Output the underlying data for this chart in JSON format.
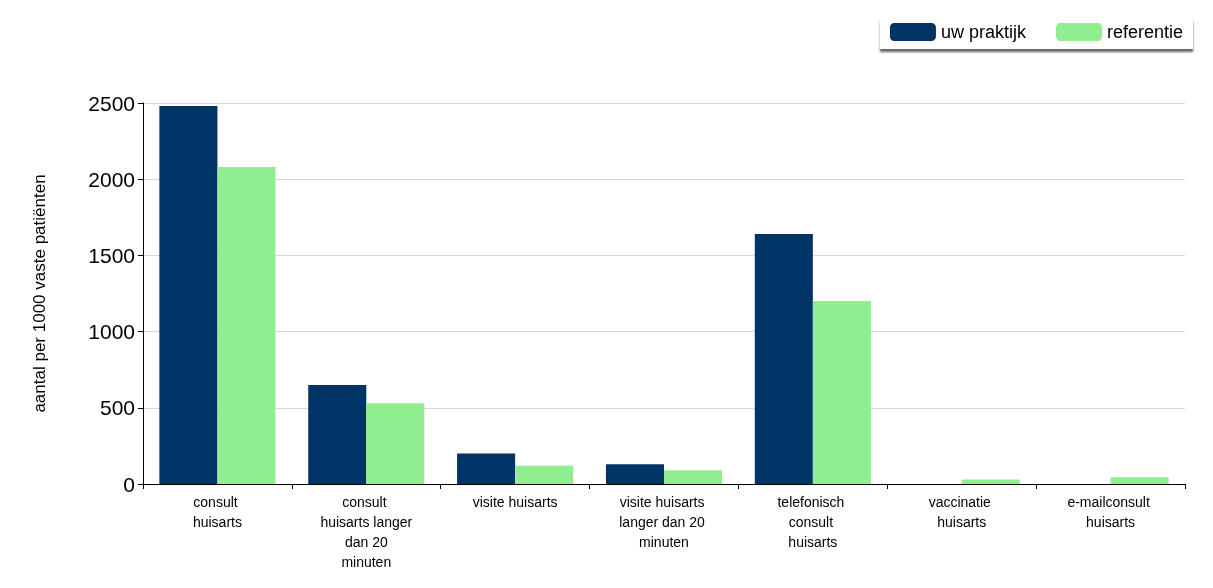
{
  "chart_data": {
    "type": "bar",
    "ylabel": "aantal per 1000 vaste patiënten",
    "categories": [
      "consult huisarts",
      "consult huisarts langer dan 20 minuten",
      "visite huisarts",
      "visite huisarts langer dan 20 minuten",
      "telefonisch consult huisarts",
      "vaccinatie huisarts",
      "e-mailconsult huisarts"
    ],
    "series": [
      {
        "name": "uw praktijk",
        "color": "#003366",
        "values": [
          2480,
          650,
          200,
          130,
          1640,
          0,
          0
        ]
      },
      {
        "name": "referentie",
        "color": "#90ee90",
        "values": [
          2080,
          530,
          120,
          90,
          1200,
          30,
          45
        ]
      }
    ],
    "ylim": [
      0,
      2500
    ],
    "yticks": [
      0,
      500,
      1000,
      1500,
      2000,
      2500
    ],
    "grid": "y",
    "legend": "top right"
  }
}
